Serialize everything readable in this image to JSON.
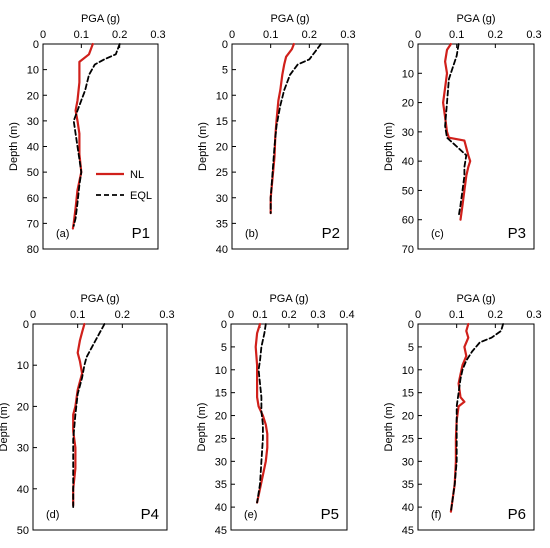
{
  "styles": {
    "NL": {
      "color": "#d0201b"
    },
    "EQL": {
      "color": "#000000"
    }
  },
  "legend": {
    "items": [
      "NL",
      "EQL"
    ]
  },
  "chart_data": [
    {
      "type": "line",
      "label": "(a)",
      "name": "P1",
      "xlabel": "PGA (g)",
      "ylabel": "Depth (m)",
      "xlim": [
        0,
        0.3
      ],
      "xticks": [
        "0",
        "0.1",
        "0.2",
        "0.3"
      ],
      "ylim": [
        0,
        80
      ],
      "yticks": [
        "0",
        "10",
        "20",
        "30",
        "40",
        "50",
        "60",
        "70",
        "80"
      ],
      "show_legend": true,
      "series": [
        {
          "name": "NL",
          "points": [
            [
              0.13,
              0
            ],
            [
              0.12,
              4
            ],
            [
              0.095,
              7
            ],
            [
              0.095,
              15
            ],
            [
              0.09,
              22
            ],
            [
              0.085,
              26
            ],
            [
              0.09,
              30
            ],
            [
              0.095,
              35
            ],
            [
              0.095,
              43
            ],
            [
              0.1,
              50
            ],
            [
              0.09,
              57
            ],
            [
              0.085,
              64
            ],
            [
              0.08,
              70
            ],
            [
              0.078,
              72
            ]
          ]
        },
        {
          "name": "EQL",
          "points": [
            [
              0.2,
              0
            ],
            [
              0.19,
              4
            ],
            [
              0.16,
              6
            ],
            [
              0.135,
              8
            ],
            [
              0.12,
              12
            ],
            [
              0.11,
              18
            ],
            [
              0.1,
              22
            ],
            [
              0.09,
              26
            ],
            [
              0.08,
              30
            ],
            [
              0.085,
              35
            ],
            [
              0.09,
              40
            ],
            [
              0.095,
              45
            ],
            [
              0.1,
              50
            ],
            [
              0.095,
              55
            ],
            [
              0.09,
              62
            ],
            [
              0.085,
              68
            ],
            [
              0.08,
              71
            ]
          ]
        }
      ]
    },
    {
      "type": "line",
      "label": "(b)",
      "name": "P2",
      "xlabel": "PGA (g)",
      "ylabel": "Depth (m)",
      "xlim": [
        0,
        0.3
      ],
      "xticks": [
        "0",
        "0.1",
        "0.2",
        "0.3"
      ],
      "ylim": [
        0,
        40
      ],
      "yticks": [
        "0",
        "5",
        "10",
        "15",
        "20",
        "25",
        "30",
        "35",
        "40"
      ],
      "show_legend": false,
      "series": [
        {
          "name": "NL",
          "points": [
            [
              0.16,
              0
            ],
            [
              0.155,
              1
            ],
            [
              0.14,
              2.5
            ],
            [
              0.135,
              4
            ],
            [
              0.13,
              6
            ],
            [
              0.125,
              9
            ],
            [
              0.12,
              11
            ],
            [
              0.115,
              15
            ],
            [
              0.112,
              18
            ],
            [
              0.11,
              22
            ],
            [
              0.105,
              26
            ],
            [
              0.1,
              30
            ],
            [
              0.1,
              33
            ]
          ]
        },
        {
          "name": "EQL",
          "points": [
            [
              0.23,
              0
            ],
            [
              0.22,
              1
            ],
            [
              0.2,
              3
            ],
            [
              0.17,
              4
            ],
            [
              0.15,
              6
            ],
            [
              0.135,
              9
            ],
            [
              0.125,
              12
            ],
            [
              0.115,
              16
            ],
            [
              0.11,
              20
            ],
            [
              0.105,
              25
            ],
            [
              0.1,
              30
            ],
            [
              0.1,
              33
            ]
          ]
        }
      ]
    },
    {
      "type": "line",
      "label": "(c)",
      "name": "P3",
      "xlabel": "PGA (g)",
      "ylabel": "Depth (m)",
      "xlim": [
        0,
        0.3
      ],
      "xticks": [
        "0",
        "0.1",
        "0.2",
        "0.3"
      ],
      "ylim": [
        0,
        70
      ],
      "yticks": [
        "0",
        "10",
        "20",
        "30",
        "40",
        "50",
        "60",
        "70"
      ],
      "show_legend": false,
      "series": [
        {
          "name": "NL",
          "points": [
            [
              0.085,
              0
            ],
            [
              0.075,
              2
            ],
            [
              0.07,
              6
            ],
            [
              0.075,
              10
            ],
            [
              0.07,
              15
            ],
            [
              0.065,
              20
            ],
            [
              0.07,
              25
            ],
            [
              0.075,
              30
            ],
            [
              0.08,
              32
            ],
            [
              0.12,
              33
            ],
            [
              0.13,
              38
            ],
            [
              0.135,
              40
            ],
            [
              0.13,
              42
            ],
            [
              0.125,
              45
            ],
            [
              0.12,
              50
            ],
            [
              0.115,
              55
            ],
            [
              0.11,
              60
            ]
          ]
        },
        {
          "name": "EQL",
          "points": [
            [
              0.105,
              0
            ],
            [
              0.1,
              4
            ],
            [
              0.09,
              8
            ],
            [
              0.08,
              12
            ],
            [
              0.075,
              20
            ],
            [
              0.07,
              28
            ],
            [
              0.075,
              32
            ],
            [
              0.1,
              35
            ],
            [
              0.125,
              38
            ],
            [
              0.12,
              42
            ],
            [
              0.12,
              45
            ],
            [
              0.115,
              50
            ],
            [
              0.11,
              55
            ],
            [
              0.105,
              59
            ]
          ]
        }
      ]
    },
    {
      "type": "line",
      "label": "(d)",
      "name": "P4",
      "xlabel": "PGA (g)",
      "ylabel": "Depth (m)",
      "xlim": [
        0,
        0.3
      ],
      "xticks": [
        "0",
        "0.1",
        "0.2",
        "0.3"
      ],
      "ylim": [
        0,
        50
      ],
      "yticks": [
        "0",
        "10",
        "20",
        "30",
        "40",
        "50"
      ],
      "show_legend": false,
      "series": [
        {
          "name": "NL",
          "points": [
            [
              0.115,
              0
            ],
            [
              0.11,
              2
            ],
            [
              0.105,
              4
            ],
            [
              0.1,
              7
            ],
            [
              0.105,
              9
            ],
            [
              0.11,
              12
            ],
            [
              0.1,
              16
            ],
            [
              0.095,
              20
            ],
            [
              0.09,
              22
            ],
            [
              0.09,
              26
            ],
            [
              0.095,
              30
            ],
            [
              0.095,
              35
            ],
            [
              0.09,
              40
            ],
            [
              0.09,
              44
            ]
          ]
        },
        {
          "name": "EQL",
          "points": [
            [
              0.16,
              0
            ],
            [
              0.15,
              2
            ],
            [
              0.14,
              4
            ],
            [
              0.13,
              6
            ],
            [
              0.12,
              8
            ],
            [
              0.115,
              10
            ],
            [
              0.11,
              13
            ],
            [
              0.1,
              17
            ],
            [
              0.095,
              22
            ],
            [
              0.09,
              28
            ],
            [
              0.09,
              35
            ],
            [
              0.09,
              40
            ],
            [
              0.09,
              45
            ]
          ]
        }
      ]
    },
    {
      "type": "line",
      "label": "(e)",
      "name": "P5",
      "xlabel": "PGA (g)",
      "ylabel": "Depth (m)",
      "xlim": [
        0,
        0.4
      ],
      "xticks": [
        "0",
        "0.1",
        "0.2",
        "0.3",
        "0.4"
      ],
      "ylim": [
        0,
        45
      ],
      "yticks": [
        "0",
        "5",
        "10",
        "15",
        "20",
        "25",
        "30",
        "35",
        "40",
        "45"
      ],
      "show_legend": false,
      "series": [
        {
          "name": "NL",
          "points": [
            [
              0.1,
              0
            ],
            [
              0.09,
              2
            ],
            [
              0.085,
              5
            ],
            [
              0.09,
              9
            ],
            [
              0.09,
              12
            ],
            [
              0.09,
              16
            ],
            [
              0.095,
              18
            ],
            [
              0.11,
              20
            ],
            [
              0.12,
              22
            ],
            [
              0.125,
              24
            ],
            [
              0.125,
              27
            ],
            [
              0.12,
              30
            ],
            [
              0.11,
              33
            ],
            [
              0.1,
              36
            ],
            [
              0.09,
              39
            ]
          ]
        },
        {
          "name": "EQL",
          "points": [
            [
              0.12,
              0
            ],
            [
              0.115,
              2
            ],
            [
              0.105,
              5
            ],
            [
              0.1,
              8
            ],
            [
              0.095,
              10
            ],
            [
              0.1,
              13
            ],
            [
              0.105,
              16
            ],
            [
              0.105,
              19
            ],
            [
              0.11,
              22
            ],
            [
              0.11,
              25
            ],
            [
              0.105,
              30
            ],
            [
              0.1,
              35
            ],
            [
              0.09,
              39
            ]
          ]
        }
      ]
    },
    {
      "type": "line",
      "label": "(f)",
      "name": "P6",
      "xlabel": "PGA (g)",
      "ylabel": "Depth (m)",
      "xlim": [
        0,
        0.3
      ],
      "xticks": [
        "0",
        "0.1",
        "0.2",
        "0.3"
      ],
      "ylim": [
        0,
        45
      ],
      "yticks": [
        "0",
        "5",
        "10",
        "15",
        "20",
        "25",
        "30",
        "35",
        "40",
        "45"
      ],
      "show_legend": false,
      "series": [
        {
          "name": "NL",
          "points": [
            [
              0.13,
              0
            ],
            [
              0.125,
              1.5
            ],
            [
              0.13,
              3
            ],
            [
              0.12,
              5
            ],
            [
              0.125,
              7
            ],
            [
              0.115,
              9
            ],
            [
              0.11,
              11
            ],
            [
              0.105,
              13
            ],
            [
              0.11,
              16
            ],
            [
              0.12,
              17
            ],
            [
              0.105,
              18
            ],
            [
              0.1,
              21
            ],
            [
              0.098,
              25
            ],
            [
              0.098,
              30
            ],
            [
              0.095,
              35
            ],
            [
              0.09,
              38
            ],
            [
              0.085,
              41
            ]
          ]
        },
        {
          "name": "EQL",
          "points": [
            [
              0.22,
              0
            ],
            [
              0.215,
              1.5
            ],
            [
              0.19,
              3
            ],
            [
              0.16,
              4
            ],
            [
              0.14,
              6
            ],
            [
              0.125,
              8
            ],
            [
              0.115,
              10
            ],
            [
              0.11,
              12
            ],
            [
              0.105,
              15
            ],
            [
              0.1,
              18
            ],
            [
              0.1,
              22
            ],
            [
              0.1,
              30
            ],
            [
              0.095,
              35
            ],
            [
              0.09,
              38
            ],
            [
              0.085,
              41
            ]
          ]
        }
      ]
    }
  ]
}
